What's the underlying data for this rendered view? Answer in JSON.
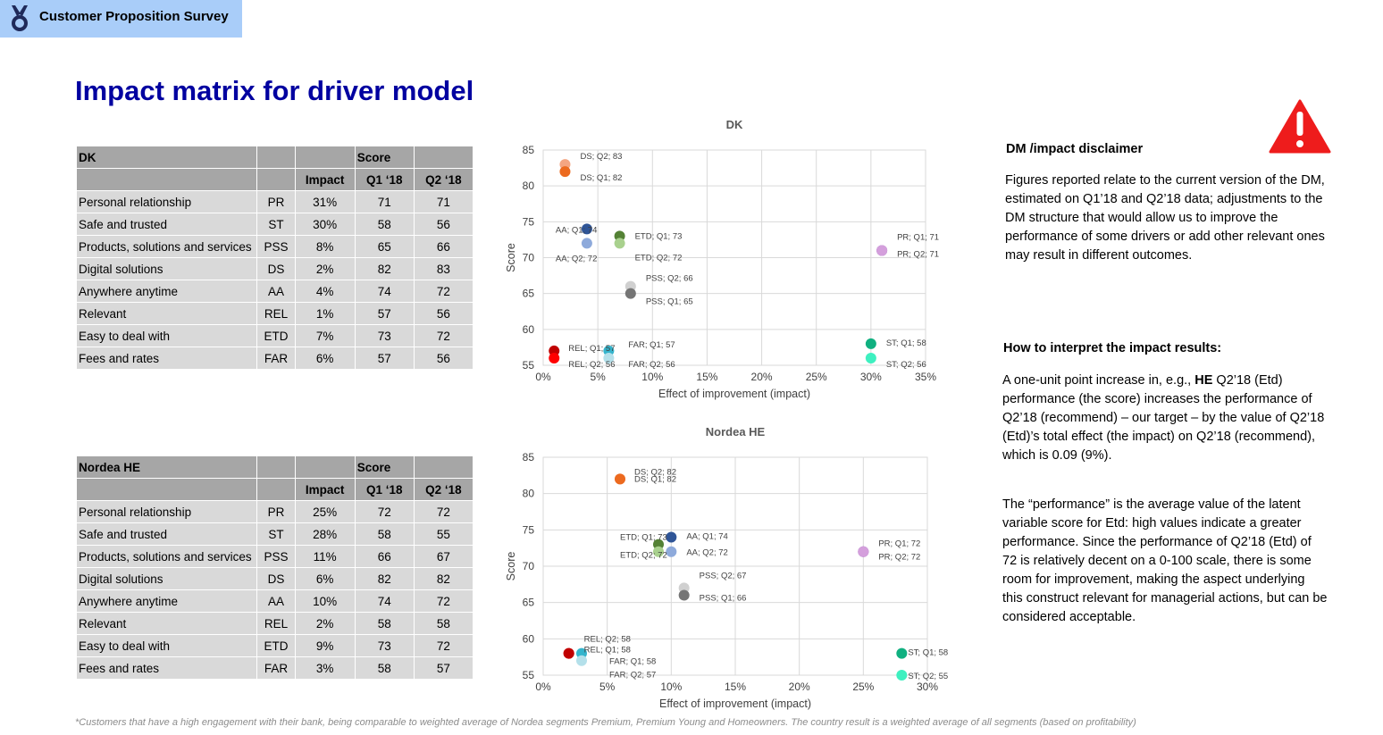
{
  "header": {
    "title": "Customer Proposition Survey",
    "logo_icon": "medal-icon"
  },
  "page_title": "Impact matrix for driver model",
  "tables": [
    {
      "name": "DK",
      "score_label": "Score",
      "headers": [
        "",
        "",
        "Impact",
        "Q1 ‘18",
        "Q2 ‘18"
      ],
      "rows": [
        [
          "Personal relationship",
          "PR",
          "31%",
          "71",
          "71"
        ],
        [
          "Safe and trusted",
          "ST",
          "30%",
          "58",
          "56"
        ],
        [
          "Products, solutions and services",
          "PSS",
          "8%",
          "65",
          "66"
        ],
        [
          "Digital solutions",
          "DS",
          "2%",
          "82",
          "83"
        ],
        [
          "Anywhere anytime",
          "AA",
          "4%",
          "74",
          "72"
        ],
        [
          "Relevant",
          "REL",
          "1%",
          "57",
          "56"
        ],
        [
          "Easy to deal with",
          "ETD",
          "7%",
          "73",
          "72"
        ],
        [
          "Fees and rates",
          "FAR",
          "6%",
          "57",
          "56"
        ]
      ]
    },
    {
      "name": "Nordea HE",
      "score_label": "Score",
      "headers": [
        "",
        "",
        "Impact",
        "Q1 ‘18",
        "Q2 ‘18"
      ],
      "rows": [
        [
          "Personal relationship",
          "PR",
          "25%",
          "72",
          "72"
        ],
        [
          "Safe and trusted",
          "ST",
          "28%",
          "58",
          "55"
        ],
        [
          "Products, solutions and services",
          "PSS",
          "11%",
          "66",
          "67"
        ],
        [
          "Digital solutions",
          "DS",
          "6%",
          "82",
          "82"
        ],
        [
          "Anywhere anytime",
          "AA",
          "10%",
          "74",
          "72"
        ],
        [
          "Relevant",
          "REL",
          "2%",
          "58",
          "58"
        ],
        [
          "Easy to deal with",
          "ETD",
          "9%",
          "73",
          "72"
        ],
        [
          "Fees and rates",
          "FAR",
          "3%",
          "58",
          "57"
        ]
      ]
    }
  ],
  "chart_data": [
    {
      "type": "scatter",
      "title": "DK",
      "xlabel": "Effect of improvement (impact)",
      "ylabel": "Score",
      "xlim": [
        0,
        0.35
      ],
      "ylim": [
        55,
        85
      ],
      "x_ticks": [
        "0%",
        "5%",
        "10%",
        "15%",
        "20%",
        "25%",
        "30%",
        "35%"
      ],
      "y_ticks": [
        "55",
        "60",
        "65",
        "70",
        "75",
        "80",
        "85"
      ],
      "grid": true,
      "points": [
        {
          "label": "DS; Q2; 83",
          "x": 0.02,
          "y": 83,
          "color": "#f4a582"
        },
        {
          "label": "DS; Q1; 82",
          "x": 0.02,
          "y": 82,
          "color": "#ec6a1f"
        },
        {
          "label": "AA; Q1; 74",
          "x": 0.04,
          "y": 74,
          "color": "#2f5597"
        },
        {
          "label": "AA; Q2; 72",
          "x": 0.04,
          "y": 72,
          "color": "#8eaadb"
        },
        {
          "label": "ETD; Q1; 73",
          "x": 0.07,
          "y": 73,
          "color": "#548235"
        },
        {
          "label": "ETD; Q2; 72",
          "x": 0.07,
          "y": 72,
          "color": "#a9d18e"
        },
        {
          "label": "PR; Q1; 71",
          "x": 0.31,
          "y": 71,
          "color": "#7030a0"
        },
        {
          "label": "PR; Q2; 71",
          "x": 0.31,
          "y": 71,
          "color": "#d49fdc"
        },
        {
          "label": "PSS; Q2; 66",
          "x": 0.08,
          "y": 66,
          "color": "#d0d0d0"
        },
        {
          "label": "PSS; Q1; 65",
          "x": 0.08,
          "y": 65,
          "color": "#757575"
        },
        {
          "label": "REL; Q1; 57",
          "x": 0.01,
          "y": 57,
          "color": "#c00000"
        },
        {
          "label": "REL; Q2; 56",
          "x": 0.01,
          "y": 56,
          "color": "#ff0000"
        },
        {
          "label": "FAR; Q1; 57",
          "x": 0.06,
          "y": 57,
          "color": "#34b4cc"
        },
        {
          "label": "FAR; Q2; 56",
          "x": 0.06,
          "y": 56,
          "color": "#b4e0ea"
        },
        {
          "label": "ST; Q1; 58",
          "x": 0.3,
          "y": 58,
          "color": "#10b080"
        },
        {
          "label": "ST; Q2; 56",
          "x": 0.3,
          "y": 56,
          "color": "#3ef0c0"
        }
      ]
    },
    {
      "type": "scatter",
      "title": "Nordea HE",
      "xlabel": "Effect of improvement (impact)",
      "ylabel": "Score",
      "xlim": [
        0,
        0.3
      ],
      "ylim": [
        55,
        85
      ],
      "x_ticks": [
        "0%",
        "5%",
        "10%",
        "15%",
        "20%",
        "25%",
        "30%"
      ],
      "y_ticks": [
        "55",
        "60",
        "65",
        "70",
        "75",
        "80",
        "85"
      ],
      "grid": true,
      "points": [
        {
          "label": "DS; Q2; 82",
          "x": 0.06,
          "y": 82,
          "color": "#f4a582"
        },
        {
          "label": "DS; Q1; 82",
          "x": 0.06,
          "y": 82,
          "color": "#ec6a1f"
        },
        {
          "label": "AA; Q1; 74",
          "x": 0.1,
          "y": 74,
          "color": "#2f5597"
        },
        {
          "label": "AA; Q2; 72",
          "x": 0.1,
          "y": 72,
          "color": "#8eaadb"
        },
        {
          "label": "ETD; Q1; 73",
          "x": 0.09,
          "y": 73,
          "color": "#548235"
        },
        {
          "label": "ETD; Q2; 72",
          "x": 0.09,
          "y": 72,
          "color": "#a9d18e"
        },
        {
          "label": "PR; Q1; 72",
          "x": 0.25,
          "y": 72,
          "color": "#7030a0"
        },
        {
          "label": "PR; Q2; 72",
          "x": 0.25,
          "y": 72,
          "color": "#d49fdc"
        },
        {
          "label": "PSS; Q2; 67",
          "x": 0.11,
          "y": 67,
          "color": "#d0d0d0"
        },
        {
          "label": "PSS; Q1; 66",
          "x": 0.11,
          "y": 66,
          "color": "#757575"
        },
        {
          "label": "REL; Q2; 58",
          "x": 0.02,
          "y": 58,
          "color": "#ff0000"
        },
        {
          "label": "REL; Q1; 58",
          "x": 0.02,
          "y": 58,
          "color": "#c00000"
        },
        {
          "label": "FAR; Q1; 58",
          "x": 0.03,
          "y": 58,
          "color": "#34b4cc"
        },
        {
          "label": "FAR; Q2; 57",
          "x": 0.03,
          "y": 57,
          "color": "#b4e0ea"
        },
        {
          "label": "ST; Q1; 58",
          "x": 0.28,
          "y": 58,
          "color": "#10b080"
        },
        {
          "label": "ST; Q2; 55",
          "x": 0.28,
          "y": 55,
          "color": "#3ef0c0"
        }
      ]
    }
  ],
  "disclaimer": {
    "icon": "warning-icon",
    "title": "DM /impact disclaimer",
    "body": "Figures reported relate to the current version of the DM, estimated on Q1’18 and Q2’18 data; adjustments to the DM structure that would allow us to improve the performance of some drivers or add other relevant ones may result in different outcomes."
  },
  "interpret": {
    "title": "How to interpret the impact results:",
    "body_pre": "A one-unit point increase in, e.g., ",
    "body_bold": "HE",
    "body_post": " Q2’18 (Etd) performance (the score) increases the performance of Q2’18 (recommend) – our target – by the value of Q2’18 (Etd)’s total effect (the impact) on Q2’18 (recommend), which is 0.09 (9%).",
    "performance": "The “performance” is the average value of the latent variable score for Etd: high values indicate a greater performance. Since the performance of Q2’18 (Etd) of 72 is relatively decent on a 0-100 scale, there is some room for improvement, making the aspect underlying this construct relevant for managerial actions, but can be considered acceptable."
  },
  "footnote": "*Customers that have a high engagement with their bank, being comparable to weighted average of Nordea segments Premium, Premium Young and Homeowners. The country result is a weighted average of all segments (based on profitability)"
}
